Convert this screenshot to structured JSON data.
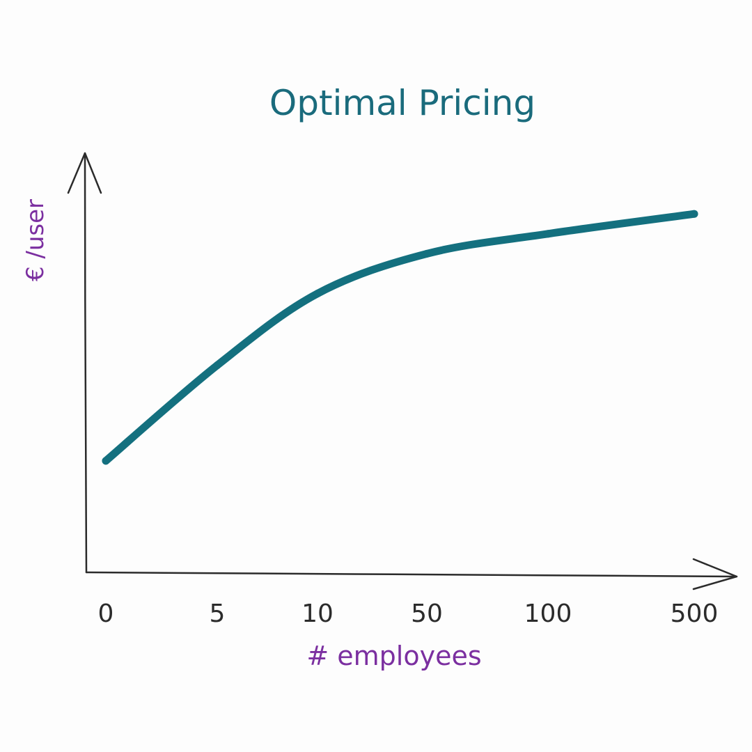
{
  "colors": {
    "background": "#fdfdfd",
    "title": "#1a6b7c",
    "axis_label": "#7b2fa0",
    "axis": "#2b2b2b",
    "series": "#14707f",
    "tick": "#2b2b2b"
  },
  "chart_data": {
    "type": "line",
    "title": "Optimal Pricing",
    "xlabel": "# employees",
    "ylabel": "€ /user",
    "x_scale": "categorical",
    "categories": [
      "0",
      "5",
      "10",
      "50",
      "100",
      "500"
    ],
    "y_ticks_shown": false,
    "grid": false,
    "series": [
      {
        "x": [
          "0",
          "5",
          "10",
          "50",
          "100",
          "500"
        ],
        "values": [
          0.28,
          0.52,
          0.7,
          0.8,
          0.85,
          0.9
        ],
        "y_unit": "relative (no y tick labels printed)"
      }
    ],
    "ylim": [
      0,
      1
    ]
  }
}
